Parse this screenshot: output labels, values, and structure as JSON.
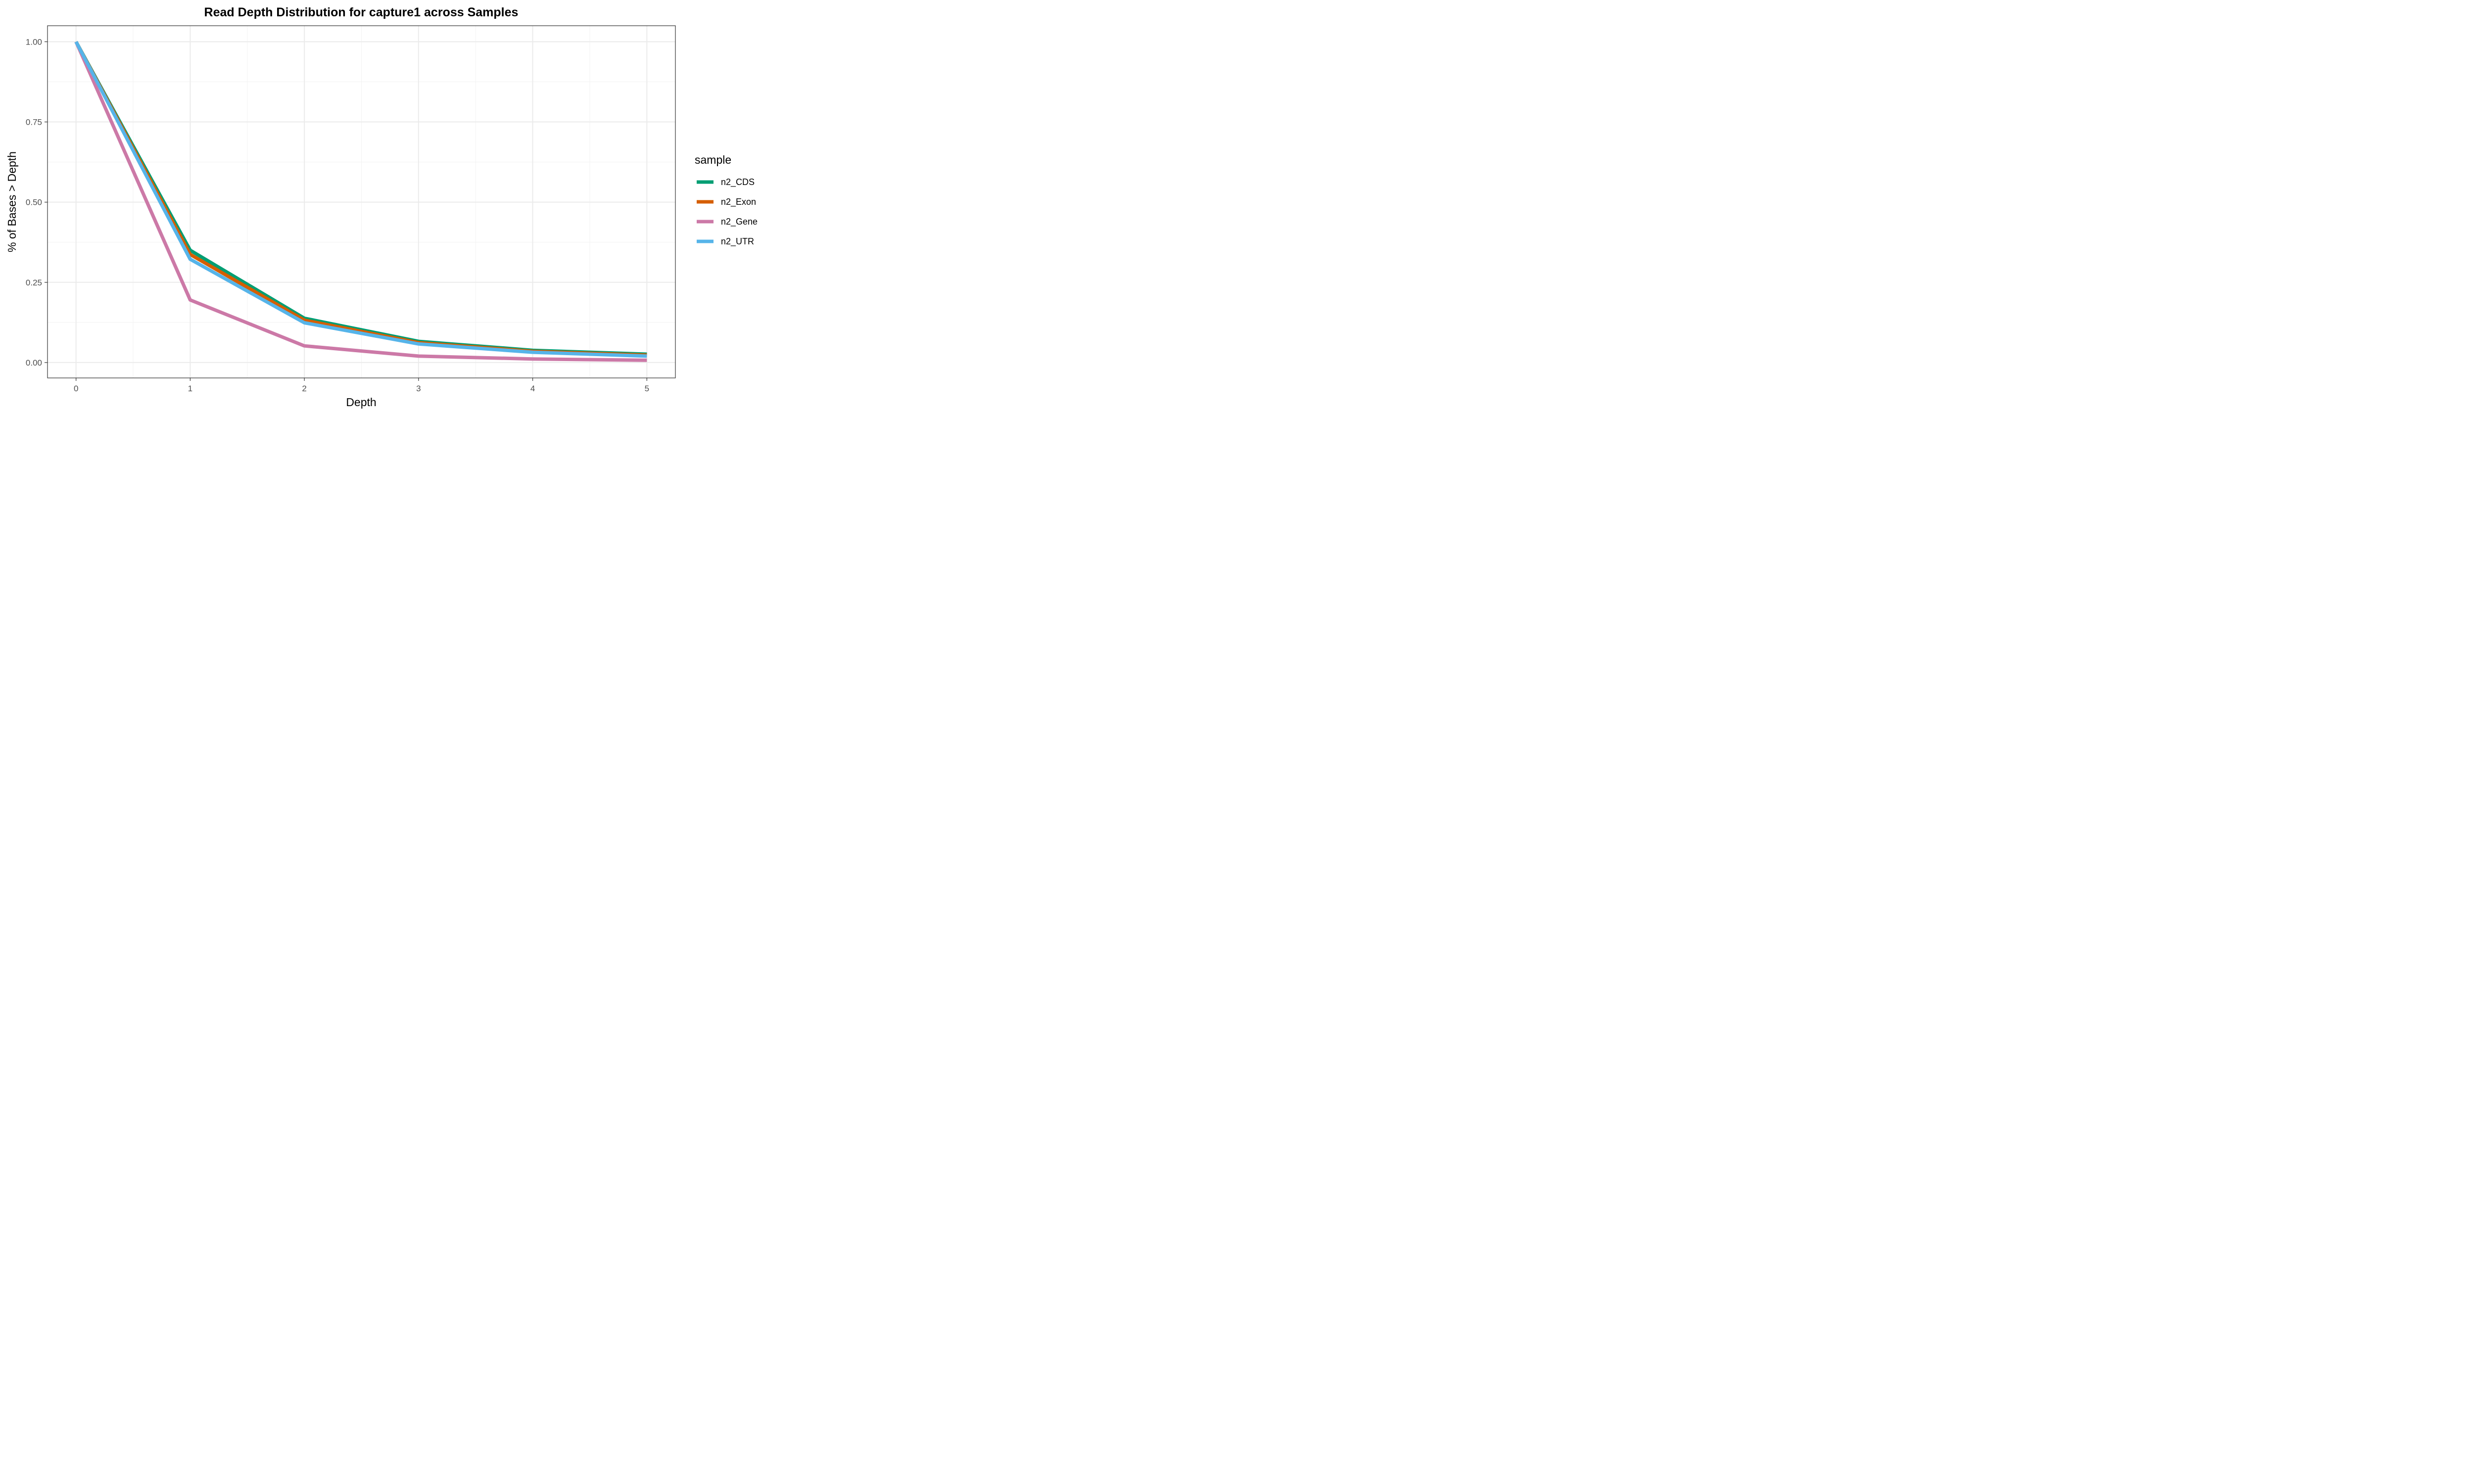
{
  "chart_data": {
    "type": "line",
    "title": "Read Depth Distribution for capture1 across Samples",
    "xlabel": "Depth",
    "ylabel": "% of Bases > Depth",
    "x": [
      0,
      1,
      2,
      3,
      4,
      5
    ],
    "x_ticks": [
      "0",
      "1",
      "2",
      "3",
      "4",
      "5"
    ],
    "y_ticks": [
      "0.00",
      "0.25",
      "0.50",
      "0.75",
      "1.00"
    ],
    "xlim": [
      -0.25,
      5.25
    ],
    "ylim": [
      -0.048,
      1.05
    ],
    "grid": true,
    "legend": {
      "title": "sample",
      "position": "right"
    },
    "series": [
      {
        "name": "n2_CDS",
        "color": "#009E73",
        "values": [
          1.0,
          0.35,
          0.138,
          0.066,
          0.038,
          0.026
        ]
      },
      {
        "name": "n2_Exon",
        "color": "#D55E00",
        "values": [
          1.0,
          0.337,
          0.132,
          0.062,
          0.035,
          0.023
        ]
      },
      {
        "name": "n2_Gene",
        "color": "#CC79A7",
        "values": [
          1.0,
          0.195,
          0.052,
          0.02,
          0.011,
          0.007
        ]
      },
      {
        "name": "n2_UTR",
        "color": "#56B4E9",
        "values": [
          1.0,
          0.322,
          0.124,
          0.058,
          0.032,
          0.02
        ]
      }
    ]
  }
}
